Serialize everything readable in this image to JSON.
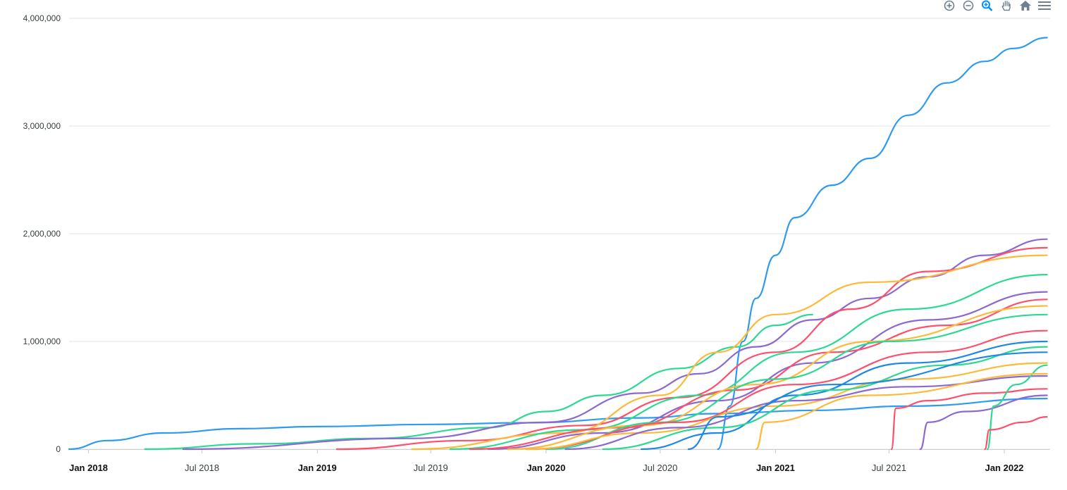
{
  "toolbar": {
    "items": [
      {
        "name": "zoom-in-icon",
        "color": "#6e8192"
      },
      {
        "name": "zoom-out-icon",
        "color": "#6e8192"
      },
      {
        "name": "selection-zoom-icon",
        "color": "#008ffb"
      },
      {
        "name": "pan-hand-icon",
        "color": "#6e8192"
      },
      {
        "name": "reset-home-icon",
        "color": "#6e8192"
      },
      {
        "name": "menu-icon",
        "color": "#6e8192"
      }
    ]
  },
  "chart_data": {
    "type": "line",
    "title": "",
    "xlabel": "",
    "ylabel": "",
    "x_range": [
      "2017-12-01",
      "2022-03-15"
    ],
    "ylim": [
      0,
      4000000
    ],
    "grid": true,
    "legend": "none",
    "y_ticks": [
      {
        "value": 0,
        "label": "0"
      },
      {
        "value": 1000000,
        "label": "1,000,000"
      },
      {
        "value": 2000000,
        "label": "2,000,000"
      },
      {
        "value": 3000000,
        "label": "3,000,000"
      },
      {
        "value": 4000000,
        "label": "4,000,000"
      }
    ],
    "x_ticks": [
      {
        "date": "2018-01-01",
        "label": "Jan 2018",
        "bold": true
      },
      {
        "date": "2018-07-01",
        "label": "Jul 2018",
        "bold": false
      },
      {
        "date": "2019-01-01",
        "label": "Jan 2019",
        "bold": true
      },
      {
        "date": "2019-07-01",
        "label": "Jul 2019",
        "bold": false
      },
      {
        "date": "2020-01-01",
        "label": "Jan 2020",
        "bold": true
      },
      {
        "date": "2020-07-01",
        "label": "Jul 2020",
        "bold": false
      },
      {
        "date": "2021-01-01",
        "label": "Jan 2021",
        "bold": true
      },
      {
        "date": "2021-07-01",
        "label": "Jul 2021",
        "bold": false
      },
      {
        "date": "2022-01-01",
        "label": "Jan 2022",
        "bold": true
      }
    ],
    "series": [
      {
        "color": "#2e9bf0",
        "points": [
          [
            "2017-12-01",
            0
          ],
          [
            "2018-02-01",
            80000
          ],
          [
            "2018-05-01",
            150000
          ],
          [
            "2018-09-01",
            190000
          ],
          [
            "2019-01-01",
            210000
          ],
          [
            "2019-07-01",
            230000
          ],
          [
            "2019-12-01",
            245000
          ],
          [
            "2020-06-01",
            290000
          ],
          [
            "2020-10-01",
            330000
          ],
          [
            "2021-03-01",
            360000
          ],
          [
            "2021-08-01",
            400000
          ],
          [
            "2022-03-10",
            470000
          ]
        ]
      },
      {
        "color": "#2e9bf0",
        "points": [
          [
            "2020-10-01",
            0
          ],
          [
            "2020-10-20",
            400000
          ],
          [
            "2020-11-10",
            1000000
          ],
          [
            "2020-12-01",
            1400000
          ],
          [
            "2021-01-01",
            1800000
          ],
          [
            "2021-02-01",
            2150000
          ],
          [
            "2021-04-01",
            2450000
          ],
          [
            "2021-06-01",
            2700000
          ],
          [
            "2021-08-01",
            3100000
          ],
          [
            "2021-10-01",
            3400000
          ],
          [
            "2021-12-01",
            3600000
          ],
          [
            "2022-01-15",
            3720000
          ],
          [
            "2022-03-10",
            3820000
          ]
        ]
      },
      {
        "color": "#2bd992",
        "points": [
          [
            "2018-04-01",
            0
          ],
          [
            "2018-10-01",
            50000
          ],
          [
            "2019-04-01",
            100000
          ],
          [
            "2019-10-01",
            200000
          ],
          [
            "2020-01-01",
            350000
          ],
          [
            "2020-04-01",
            500000
          ],
          [
            "2020-08-01",
            750000
          ],
          [
            "2020-11-01",
            950000
          ],
          [
            "2021-01-01",
            1150000
          ],
          [
            "2021-03-01",
            1250000
          ]
        ]
      },
      {
        "color": "#8c68d0",
        "points": [
          [
            "2018-06-01",
            0
          ],
          [
            "2019-06-01",
            100000
          ],
          [
            "2020-01-01",
            250000
          ],
          [
            "2020-06-01",
            520000
          ],
          [
            "2020-09-01",
            700000
          ],
          [
            "2020-12-01",
            950000
          ],
          [
            "2021-03-01",
            1200000
          ],
          [
            "2021-06-01",
            1400000
          ],
          [
            "2021-09-01",
            1600000
          ],
          [
            "2021-12-01",
            1800000
          ],
          [
            "2022-03-10",
            1950000
          ]
        ]
      },
      {
        "color": "#ff4f6a",
        "points": [
          [
            "2019-02-01",
            0
          ],
          [
            "2019-09-01",
            80000
          ],
          [
            "2020-03-01",
            220000
          ],
          [
            "2020-08-01",
            480000
          ],
          [
            "2021-01-01",
            900000
          ],
          [
            "2021-05-01",
            1300000
          ],
          [
            "2021-09-01",
            1650000
          ],
          [
            "2022-03-10",
            1870000
          ]
        ]
      },
      {
        "color": "#feb938",
        "points": [
          [
            "2019-06-01",
            0
          ],
          [
            "2020-02-01",
            150000
          ],
          [
            "2020-07-01",
            500000
          ],
          [
            "2020-10-01",
            900000
          ],
          [
            "2021-01-01",
            1250000
          ],
          [
            "2021-06-01",
            1550000
          ],
          [
            "2022-03-10",
            1800000
          ]
        ]
      },
      {
        "color": "#2bd992",
        "points": [
          [
            "2019-08-01",
            0
          ],
          [
            "2020-03-01",
            180000
          ],
          [
            "2020-09-01",
            500000
          ],
          [
            "2021-02-01",
            900000
          ],
          [
            "2021-08-01",
            1300000
          ],
          [
            "2022-03-10",
            1620000
          ]
        ]
      },
      {
        "color": "#8c68d0",
        "points": [
          [
            "2019-10-01",
            0
          ],
          [
            "2020-04-01",
            150000
          ],
          [
            "2020-10-01",
            450000
          ],
          [
            "2021-03-01",
            800000
          ],
          [
            "2021-09-01",
            1200000
          ],
          [
            "2022-03-10",
            1460000
          ]
        ]
      },
      {
        "color": "#ff4f6a",
        "points": [
          [
            "2019-09-01",
            0
          ],
          [
            "2020-05-01",
            200000
          ],
          [
            "2020-11-01",
            550000
          ],
          [
            "2021-04-01",
            900000
          ],
          [
            "2021-10-01",
            1150000
          ],
          [
            "2022-03-10",
            1390000
          ]
        ]
      },
      {
        "color": "#feb938",
        "points": [
          [
            "2019-11-01",
            0
          ],
          [
            "2020-06-01",
            220000
          ],
          [
            "2020-12-01",
            600000
          ],
          [
            "2021-06-01",
            1000000
          ],
          [
            "2022-03-10",
            1330000
          ]
        ]
      },
      {
        "color": "#2bd992",
        "points": [
          [
            "2020-01-01",
            0
          ],
          [
            "2020-07-01",
            250000
          ],
          [
            "2021-01-01",
            650000
          ],
          [
            "2021-07-01",
            1000000
          ],
          [
            "2022-03-10",
            1250000
          ]
        ]
      },
      {
        "color": "#1e88e5",
        "points": [
          [
            "2020-06-01",
            0
          ],
          [
            "2020-10-01",
            150000
          ],
          [
            "2021-02-01",
            500000
          ],
          [
            "2021-08-01",
            800000
          ],
          [
            "2022-03-10",
            1000000
          ]
        ]
      },
      {
        "color": "#ff4f6a",
        "points": [
          [
            "2019-12-01",
            0
          ],
          [
            "2020-08-01",
            250000
          ],
          [
            "2021-02-01",
            600000
          ],
          [
            "2021-09-01",
            900000
          ],
          [
            "2022-03-10",
            1100000
          ]
        ]
      },
      {
        "color": "#feb938",
        "points": [
          [
            "2019-12-01",
            0
          ],
          [
            "2020-06-01",
            150000
          ],
          [
            "2021-01-01",
            400000
          ],
          [
            "2021-08-01",
            650000
          ],
          [
            "2022-03-10",
            800000
          ]
        ]
      },
      {
        "color": "#8c68d0",
        "points": [
          [
            "2020-02-01",
            0
          ],
          [
            "2020-08-01",
            200000
          ],
          [
            "2021-02-01",
            450000
          ],
          [
            "2021-08-01",
            580000
          ],
          [
            "2022-03-10",
            680000
          ]
        ]
      },
      {
        "color": "#2bd992",
        "points": [
          [
            "2020-04-01",
            0
          ],
          [
            "2020-10-01",
            200000
          ],
          [
            "2021-04-01",
            550000
          ],
          [
            "2021-10-01",
            780000
          ],
          [
            "2022-03-10",
            950000
          ]
        ]
      },
      {
        "color": "#ff4f6a",
        "points": [
          [
            "2021-07-05",
            0
          ],
          [
            "2021-07-12",
            380000
          ],
          [
            "2021-09-01",
            450000
          ],
          [
            "2021-12-01",
            520000
          ],
          [
            "2022-03-10",
            560000
          ]
        ]
      },
      {
        "color": "#8c68d0",
        "points": [
          [
            "2021-08-20",
            0
          ],
          [
            "2021-09-01",
            250000
          ],
          [
            "2021-11-01",
            350000
          ],
          [
            "2022-03-10",
            500000
          ]
        ]
      },
      {
        "color": "#2bd992",
        "points": [
          [
            "2021-12-05",
            0
          ],
          [
            "2021-12-15",
            400000
          ],
          [
            "2022-01-20",
            600000
          ],
          [
            "2022-03-10",
            780000
          ]
        ]
      },
      {
        "color": "#ff4f6a",
        "points": [
          [
            "2021-12-01",
            0
          ],
          [
            "2021-12-08",
            180000
          ],
          [
            "2022-02-01",
            250000
          ],
          [
            "2022-03-10",
            300000
          ]
        ]
      },
      {
        "color": "#feb938",
        "points": [
          [
            "2020-12-01",
            0
          ],
          [
            "2020-12-15",
            250000
          ],
          [
            "2021-06-01",
            500000
          ],
          [
            "2022-03-10",
            700000
          ]
        ]
      },
      {
        "color": "#1e88e5",
        "points": [
          [
            "2020-08-15",
            0
          ],
          [
            "2020-10-01",
            300000
          ],
          [
            "2021-04-01",
            600000
          ],
          [
            "2022-03-10",
            900000
          ]
        ]
      }
    ]
  }
}
